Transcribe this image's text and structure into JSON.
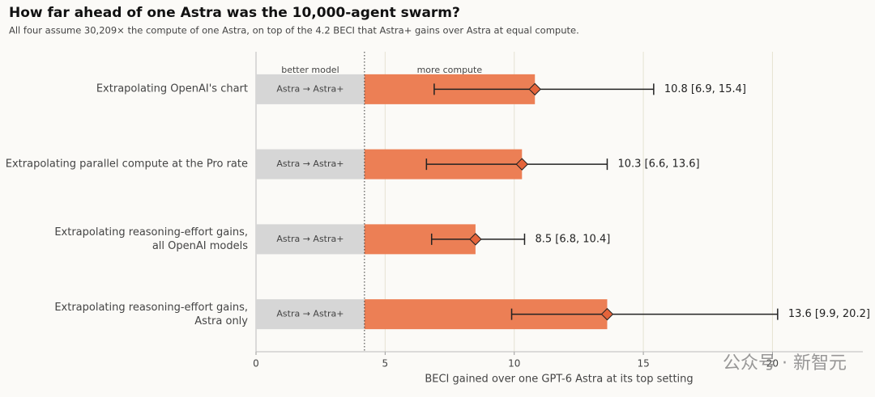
{
  "chart_data": {
    "type": "bar",
    "orientation": "horizontal",
    "stacked": true,
    "title": "How far ahead of one Astra was the 10,000-agent swarm?",
    "subtitle": "All four assume 30,209× the compute of one Astra, on top of the 4.2 BECI that Astra+ gains over Astra at equal compute.",
    "x_label": "BECI gained over one GPT-6 Astra at its top setting",
    "categories": [
      "Extrapolating OpenAI's chart",
      "Extrapolating parallel compute at the Pro rate",
      "Extrapolating reasoning-effort gains,\nall OpenAI models",
      "Extrapolating reasoning-effort gains,\nAstra only"
    ],
    "series": [
      {
        "name": "better model",
        "color": "#d6d6d6",
        "values": [
          4.2,
          4.2,
          4.2,
          4.2
        ],
        "bar_labels": [
          "Astra → Astra+",
          "Astra → Astra+",
          "Astra → Astra+",
          "Astra → Astra+"
        ]
      },
      {
        "name": "more compute",
        "color": "#ec7f55",
        "values": [
          6.6,
          6.1,
          4.3,
          9.4
        ]
      }
    ],
    "estimates": {
      "color": "#e4643b",
      "values": [
        10.8,
        10.3,
        8.5,
        13.6
      ],
      "lower": [
        6.9,
        6.6,
        6.8,
        9.9
      ],
      "upper": [
        15.4,
        13.6,
        10.4,
        20.2
      ],
      "value_labels": [
        "10.8 [6.9, 15.4]",
        "10.3 [6.6, 13.6]",
        "8.5 [6.8, 10.4]",
        "13.6 [9.9, 20.2]"
      ]
    },
    "xlim": [
      0,
      23.5
    ],
    "xticks": [
      0,
      5,
      10,
      15,
      20
    ],
    "grid": true,
    "watermark": "公众号 · 新智元"
  }
}
